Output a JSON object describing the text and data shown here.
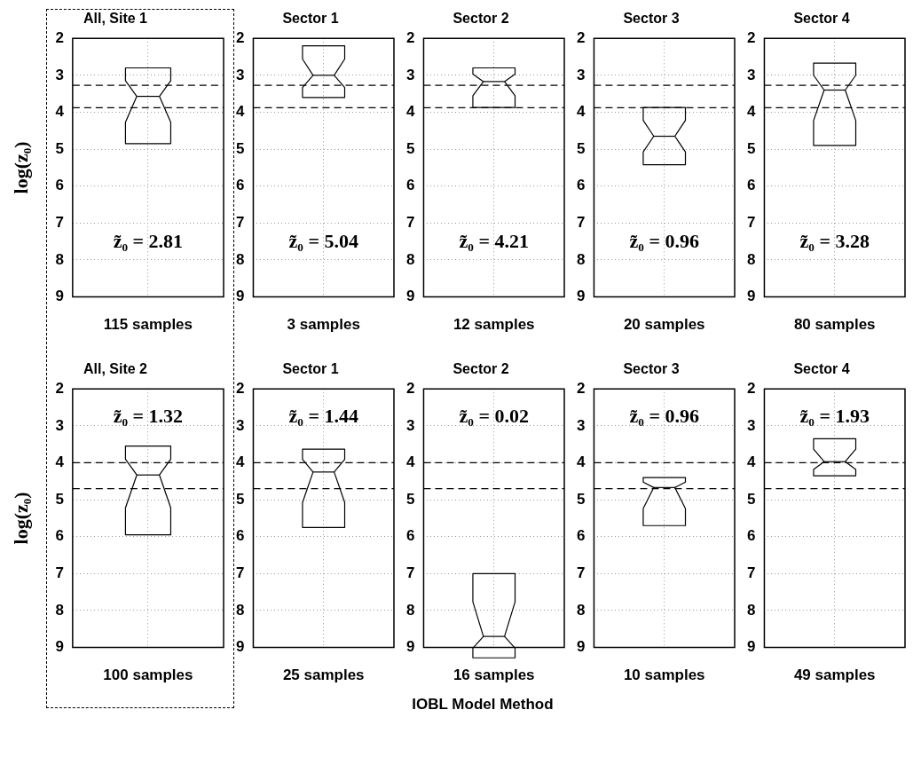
{
  "chart_data": [
    {
      "type": "box",
      "title": "All, Site 1",
      "ylabel": "log(z₀)",
      "xlabel": "115 samples",
      "categories": [
        null
      ],
      "boxes": [
        {
          "low": 2.8,
          "q1": 2.8,
          "median": 3.57,
          "q3": 4.85,
          "high": 4.85
        }
      ],
      "ylim": [
        9,
        2
      ],
      "yticks": [
        2,
        3,
        4,
        5,
        6,
        7,
        8,
        9
      ],
      "grid": true,
      "tick_labels": "y",
      "annotations": [
        "z̃₀ = 2.81"
      ],
      "ref_lines": [
        {
          "axis": "y",
          "value": 3.27,
          "line_style": "dashed"
        },
        {
          "axis": "y",
          "value": 3.88,
          "line_style": "dashed"
        }
      ]
    },
    {
      "type": "box",
      "title": "Sector 1",
      "xlabel": "3 samples",
      "categories": [
        null
      ],
      "boxes": [
        {
          "low": 2.2,
          "q1": 2.2,
          "median": 3.0,
          "q3": 3.6,
          "high": 3.6
        }
      ],
      "ylim": [
        9,
        2
      ],
      "yticks": [
        2,
        3,
        4,
        5,
        6,
        7,
        8,
        9
      ],
      "grid": true,
      "tick_labels": "y",
      "annotations": [
        "z̃₀ = 5.04"
      ],
      "ref_lines": [
        {
          "axis": "y",
          "value": 3.27,
          "line_style": "dashed"
        },
        {
          "axis": "y",
          "value": 3.88,
          "line_style": "dashed"
        }
      ]
    },
    {
      "type": "box",
      "title": "Sector 2",
      "xlabel": "12 samples",
      "categories": [
        null
      ],
      "boxes": [
        {
          "low": 2.8,
          "q1": 2.8,
          "median": 3.17,
          "q3": 3.87,
          "high": 3.87
        }
      ],
      "ylim": [
        9,
        2
      ],
      "yticks": [
        2,
        3,
        4,
        5,
        6,
        7,
        8,
        9
      ],
      "grid": true,
      "tick_labels": "y",
      "annotations": [
        "z̃₀ = 4.21"
      ],
      "ref_lines": [
        {
          "axis": "y",
          "value": 3.27,
          "line_style": "dashed"
        },
        {
          "axis": "y",
          "value": 3.88,
          "line_style": "dashed"
        }
      ]
    },
    {
      "type": "box",
      "title": "Sector 3",
      "xlabel": "20 samples",
      "categories": [
        null
      ],
      "boxes": [
        {
          "low": 3.87,
          "q1": 3.87,
          "median": 4.65,
          "q3": 5.42,
          "high": 5.42
        }
      ],
      "ylim": [
        9,
        2
      ],
      "yticks": [
        2,
        3,
        4,
        5,
        6,
        7,
        8,
        9
      ],
      "grid": true,
      "tick_labels": "y",
      "annotations": [
        "z̃₀ = 0.96"
      ],
      "ref_lines": [
        {
          "axis": "y",
          "value": 3.27,
          "line_style": "dashed"
        },
        {
          "axis": "y",
          "value": 3.88,
          "line_style": "dashed"
        }
      ]
    },
    {
      "type": "box",
      "title": "Sector 4",
      "xlabel": "80 samples",
      "categories": [
        null
      ],
      "boxes": [
        {
          "low": 2.67,
          "q1": 2.67,
          "median": 3.4,
          "q3": 4.9,
          "high": 4.9
        }
      ],
      "ylim": [
        9,
        2
      ],
      "yticks": [
        2,
        3,
        4,
        5,
        6,
        7,
        8,
        9
      ],
      "grid": true,
      "tick_labels": "y",
      "annotations": [
        "z̃₀ = 3.28"
      ],
      "ref_lines": [
        {
          "axis": "y",
          "value": 3.27,
          "line_style": "dashed"
        },
        {
          "axis": "y",
          "value": 3.88,
          "line_style": "dashed"
        }
      ]
    },
    {
      "type": "box",
      "title": "All, Site 2",
      "ylabel": "log(z₀)",
      "xlabel": "100 samples",
      "categories": [
        null
      ],
      "boxes": [
        {
          "low": 3.55,
          "q1": 3.55,
          "median": 4.33,
          "q3": 5.95,
          "high": 5.95
        }
      ],
      "ylim": [
        9,
        2
      ],
      "yticks": [
        2,
        3,
        4,
        5,
        6,
        7,
        8,
        9
      ],
      "grid": true,
      "tick_labels": "y",
      "annotations": [
        "z̃₀ = 1.32"
      ],
      "ref_lines": [
        {
          "axis": "y",
          "value": 4.0,
          "line_style": "dashed"
        },
        {
          "axis": "y",
          "value": 4.7,
          "line_style": "dashed"
        }
      ]
    },
    {
      "type": "box",
      "title": "Sector 1",
      "xlabel": "25 samples",
      "categories": [
        null
      ],
      "boxes": [
        {
          "low": 3.63,
          "q1": 3.63,
          "median": 4.25,
          "q3": 5.75,
          "high": 5.75
        }
      ],
      "ylim": [
        9,
        2
      ],
      "yticks": [
        2,
        3,
        4,
        5,
        6,
        7,
        8,
        9
      ],
      "grid": true,
      "tick_labels": "y",
      "annotations": [
        "z̃₀ = 1.44"
      ],
      "ref_lines": [
        {
          "axis": "y",
          "value": 4.0,
          "line_style": "dashed"
        },
        {
          "axis": "y",
          "value": 4.7,
          "line_style": "dashed"
        }
      ]
    },
    {
      "type": "box",
      "title": "Sector 2",
      "xlabel": "16 samples",
      "categories": [
        null
      ],
      "boxes": [
        {
          "low": 7.0,
          "q1": 7.0,
          "median": 8.7,
          "q3": 9.28,
          "high": 9.28
        }
      ],
      "ylim": [
        9,
        2
      ],
      "yticks": [
        2,
        3,
        4,
        5,
        6,
        7,
        8,
        9
      ],
      "grid": true,
      "tick_labels": "y",
      "annotations": [
        "z̃₀ = 0.02",
        "IOBL Model Method"
      ],
      "ref_lines": [
        {
          "axis": "y",
          "value": 4.0,
          "line_style": "dashed"
        },
        {
          "axis": "y",
          "value": 4.7,
          "line_style": "dashed"
        }
      ]
    },
    {
      "type": "box",
      "title": "Sector 3",
      "xlabel": "10 samples",
      "categories": [
        null
      ],
      "boxes": [
        {
          "low": 4.4,
          "q1": 4.4,
          "median": 4.67,
          "q3": 5.7,
          "high": 5.7
        }
      ],
      "ylim": [
        9,
        2
      ],
      "yticks": [
        2,
        3,
        4,
        5,
        6,
        7,
        8,
        9
      ],
      "grid": true,
      "tick_labels": "y",
      "annotations": [
        "z̃₀ = 0.96"
      ],
      "ref_lines": [
        {
          "axis": "y",
          "value": 4.0,
          "line_style": "dashed"
        },
        {
          "axis": "y",
          "value": 4.7,
          "line_style": "dashed"
        }
      ]
    },
    {
      "type": "box",
      "title": "Sector 4",
      "xlabel": "49 samples",
      "categories": [
        null
      ],
      "boxes": [
        {
          "low": 3.35,
          "q1": 3.35,
          "median": 3.97,
          "q3": 4.35,
          "high": 4.35
        }
      ],
      "ylim": [
        9,
        2
      ],
      "yticks": [
        2,
        3,
        4,
        5,
        6,
        7,
        8,
        9
      ],
      "grid": true,
      "tick_labels": "y",
      "annotations": [
        "z̃₀ = 1.93"
      ],
      "ref_lines": [
        {
          "axis": "y",
          "value": 4.0,
          "line_style": "dashed"
        },
        {
          "axis": "y",
          "value": 4.7,
          "line_style": "dashed"
        }
      ]
    }
  ]
}
